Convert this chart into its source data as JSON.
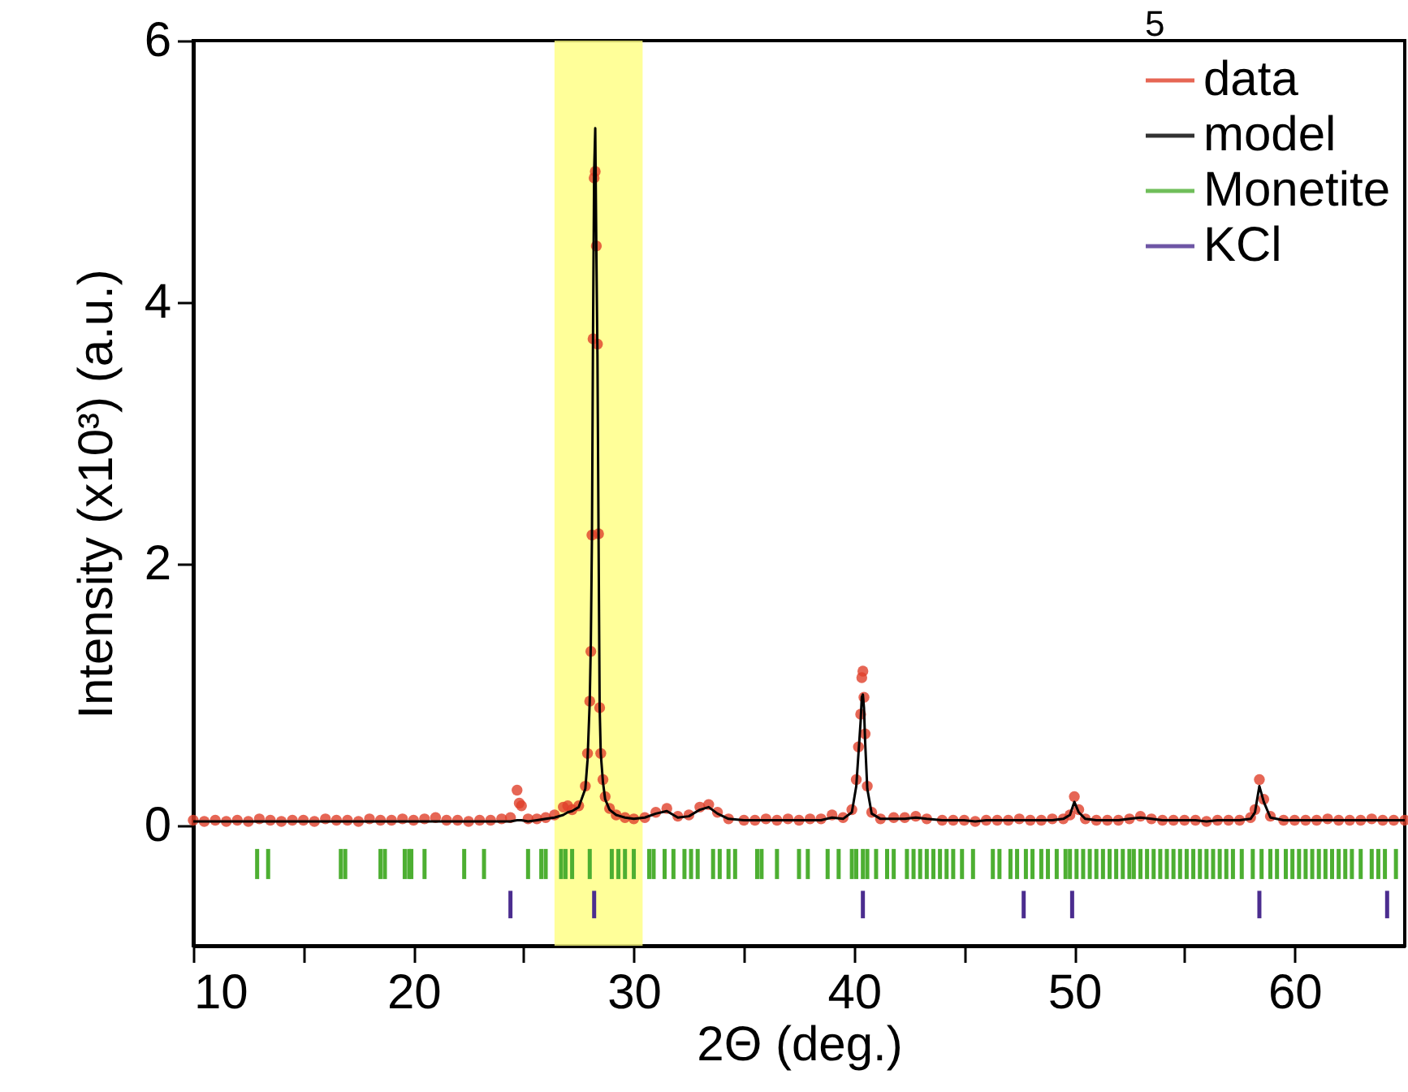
{
  "chart_data": {
    "type": "scatter",
    "xlabel": "2Θ (deg.)",
    "ylabel": "Intensity (x10³) (a.u.)",
    "annotations": [
      "5"
    ],
    "xlim": [
      10,
      65
    ],
    "xticks": [
      10,
      {
        "value": 15,
        "label": null
      },
      20,
      {
        "value": 25,
        "label": null
      },
      30,
      {
        "value": 35,
        "label": null
      },
      40,
      {
        "value": 45,
        "label": null
      },
      50,
      {
        "value": 55,
        "label": null
      },
      60
    ],
    "ylim": [
      -0.92,
      6
    ],
    "yticks": [
      0,
      2,
      4,
      6
    ],
    "legend": "top right",
    "grid": false,
    "bands": [
      {
        "axis": "x",
        "from": 26.4,
        "to": 30.4,
        "color": "#ffff80"
      }
    ],
    "series": [
      {
        "name": "data",
        "marker": "circle",
        "color": "#e0402a",
        "x": [
          10,
          10.5,
          11,
          11.5,
          12,
          12.5,
          13,
          13.5,
          14,
          14.5,
          15,
          15.5,
          16,
          16.5,
          17,
          17.5,
          18,
          18.5,
          19,
          19.5,
          20,
          20.5,
          21,
          21.5,
          22,
          22.5,
          23,
          23.5,
          24,
          24.4,
          24.7,
          24.8,
          24.9,
          25.2,
          25.6,
          26,
          26.4,
          26.8,
          27,
          27.2,
          27.5,
          27.8,
          27.9,
          28,
          28.05,
          28.1,
          28.15,
          28.2,
          28.25,
          28.3,
          28.35,
          28.4,
          28.45,
          28.5,
          28.6,
          28.7,
          28.9,
          29.2,
          29.6,
          30,
          30.5,
          31,
          31.5,
          32,
          32.5,
          33,
          33.4,
          33.8,
          34.3,
          35,
          35.5,
          36,
          36.5,
          37,
          37.5,
          38,
          38.5,
          39,
          39.5,
          39.9,
          40.1,
          40.2,
          40.3,
          40.35,
          40.4,
          40.45,
          40.5,
          40.6,
          40.8,
          41.2,
          41.8,
          42.3,
          42.8,
          43.3,
          44,
          44.5,
          45,
          45.5,
          46,
          46.5,
          47,
          47.5,
          48,
          48.5,
          49,
          49.5,
          49.8,
          50,
          50.2,
          50.5,
          51,
          51.5,
          52,
          52.5,
          53,
          53.5,
          54,
          54.5,
          55,
          55.5,
          56,
          56.5,
          57,
          57.5,
          58,
          58.2,
          58.4,
          58.6,
          58.9,
          59.5,
          60,
          60.5,
          61,
          61.5,
          62,
          62.5,
          63,
          63.5,
          64,
          64.5,
          65
        ],
        "values": [
          0.04,
          0.03,
          0.04,
          0.03,
          0.04,
          0.03,
          0.05,
          0.04,
          0.03,
          0.04,
          0.04,
          0.03,
          0.05,
          0.04,
          0.04,
          0.03,
          0.05,
          0.04,
          0.04,
          0.05,
          0.04,
          0.05,
          0.06,
          0.04,
          0.04,
          0.03,
          0.04,
          0.04,
          0.05,
          0.06,
          0.27,
          0.17,
          0.15,
          0.05,
          0.05,
          0.06,
          0.08,
          0.14,
          0.15,
          0.12,
          0.15,
          0.3,
          0.55,
          0.95,
          1.33,
          2.22,
          3.72,
          4.95,
          5.0,
          4.43,
          3.68,
          2.23,
          0.9,
          0.55,
          0.35,
          0.22,
          0.13,
          0.08,
          0.06,
          0.05,
          0.06,
          0.1,
          0.13,
          0.07,
          0.08,
          0.14,
          0.16,
          0.1,
          0.05,
          0.04,
          0.04,
          0.05,
          0.04,
          0.05,
          0.04,
          0.05,
          0.05,
          0.08,
          0.06,
          0.12,
          0.35,
          0.6,
          0.85,
          1.13,
          1.18,
          0.98,
          0.7,
          0.3,
          0.1,
          0.05,
          0.06,
          0.06,
          0.07,
          0.05,
          0.04,
          0.04,
          0.04,
          0.03,
          0.04,
          0.04,
          0.04,
          0.05,
          0.04,
          0.04,
          0.05,
          0.05,
          0.08,
          0.22,
          0.12,
          0.05,
          0.04,
          0.04,
          0.04,
          0.05,
          0.07,
          0.05,
          0.04,
          0.04,
          0.04,
          0.04,
          0.03,
          0.04,
          0.04,
          0.04,
          0.06,
          0.12,
          0.35,
          0.2,
          0.07,
          0.04,
          0.04,
          0.04,
          0.04,
          0.05,
          0.04,
          0.04,
          0.04,
          0.05,
          0.04,
          0.04,
          0.04
        ]
      },
      {
        "name": "model",
        "type": "line",
        "color": "#000000",
        "x": [
          10,
          10.5,
          11,
          11.5,
          12,
          12.5,
          13,
          13.5,
          14,
          14.5,
          15,
          15.5,
          16,
          16.5,
          17,
          17.5,
          18,
          18.5,
          19,
          19.5,
          20,
          20.5,
          21,
          21.5,
          22,
          22.5,
          23,
          23.5,
          24,
          24.4,
          24.7,
          24.8,
          24.9,
          25.2,
          25.6,
          26,
          26.4,
          26.8,
          27,
          27.2,
          27.5,
          27.8,
          27.9,
          28,
          28.05,
          28.1,
          28.15,
          28.2,
          28.25,
          28.3,
          28.35,
          28.4,
          28.45,
          28.5,
          28.6,
          28.7,
          28.9,
          29.2,
          29.6,
          30,
          30.5,
          31,
          31.5,
          32,
          32.5,
          33,
          33.4,
          33.8,
          34.3,
          35,
          35.5,
          36,
          36.5,
          37,
          37.5,
          38,
          38.5,
          39,
          39.5,
          39.9,
          40.1,
          40.2,
          40.3,
          40.35,
          40.4,
          40.45,
          40.5,
          40.6,
          40.8,
          41.2,
          41.8,
          42.3,
          42.8,
          43.3,
          44,
          44.5,
          45,
          45.5,
          46,
          46.5,
          47,
          47.5,
          48,
          48.5,
          49,
          49.5,
          49.8,
          50,
          50.2,
          50.5,
          51,
          51.5,
          52,
          52.5,
          53,
          53.5,
          54,
          54.5,
          55,
          55.5,
          56,
          56.5,
          57,
          57.5,
          58,
          58.2,
          58.4,
          58.6,
          58.9,
          59.5,
          60,
          60.5,
          61,
          61.5,
          62,
          62.5,
          63,
          63.5,
          64,
          64.5,
          65
        ],
        "values": [
          0.03,
          0.03,
          0.03,
          0.03,
          0.03,
          0.03,
          0.03,
          0.03,
          0.03,
          0.03,
          0.03,
          0.03,
          0.03,
          0.03,
          0.03,
          0.03,
          0.03,
          0.03,
          0.03,
          0.03,
          0.03,
          0.03,
          0.03,
          0.03,
          0.03,
          0.03,
          0.03,
          0.03,
          0.03,
          0.03,
          0.04,
          0.04,
          0.04,
          0.03,
          0.04,
          0.05,
          0.06,
          0.08,
          0.1,
          0.11,
          0.14,
          0.28,
          0.5,
          0.95,
          1.4,
          2.2,
          3.8,
          5.0,
          5.33,
          4.4,
          3.6,
          2.2,
          0.9,
          0.55,
          0.33,
          0.2,
          0.12,
          0.08,
          0.06,
          0.05,
          0.06,
          0.09,
          0.11,
          0.06,
          0.07,
          0.12,
          0.14,
          0.09,
          0.05,
          0.04,
          0.04,
          0.04,
          0.04,
          0.04,
          0.04,
          0.04,
          0.04,
          0.06,
          0.05,
          0.1,
          0.3,
          0.55,
          0.8,
          0.98,
          1.0,
          0.9,
          0.65,
          0.28,
          0.09,
          0.05,
          0.05,
          0.05,
          0.06,
          0.05,
          0.04,
          0.04,
          0.04,
          0.03,
          0.04,
          0.04,
          0.04,
          0.04,
          0.04,
          0.04,
          0.04,
          0.05,
          0.08,
          0.18,
          0.1,
          0.05,
          0.04,
          0.04,
          0.04,
          0.05,
          0.06,
          0.05,
          0.04,
          0.04,
          0.04,
          0.04,
          0.03,
          0.04,
          0.04,
          0.04,
          0.05,
          0.1,
          0.3,
          0.18,
          0.06,
          0.04,
          0.04,
          0.04,
          0.04,
          0.04,
          0.04,
          0.04,
          0.04,
          0.04,
          0.04,
          0.04,
          0.04
        ]
      },
      {
        "name": "Monetite",
        "type": "bar",
        "color": "#4daf32",
        "base": [
          -0.41,
          -0.41,
          -0.41,
          -0.41,
          -0.41,
          -0.41,
          -0.41,
          -0.41,
          -0.41,
          -0.41,
          -0.41,
          -0.41,
          -0.41,
          -0.41,
          -0.41,
          -0.41,
          -0.41,
          -0.41,
          -0.41,
          -0.41,
          -0.41,
          -0.41,
          -0.41,
          -0.41,
          -0.41,
          -0.41,
          -0.41,
          -0.41,
          -0.41,
          -0.41,
          -0.41,
          -0.41,
          -0.41,
          -0.41,
          -0.41,
          -0.41,
          -0.41,
          -0.41,
          -0.41,
          -0.41,
          -0.41,
          -0.41,
          -0.41,
          -0.41,
          -0.41,
          -0.41,
          -0.41,
          -0.41,
          -0.41,
          -0.41,
          -0.41,
          -0.41,
          -0.41,
          -0.41,
          -0.41,
          -0.41,
          -0.41,
          -0.41,
          -0.41,
          -0.41,
          -0.41,
          -0.41,
          -0.41,
          -0.41,
          -0.41,
          -0.41,
          -0.41,
          -0.41,
          -0.41,
          -0.41,
          -0.41,
          -0.41,
          -0.41,
          -0.41,
          -0.41,
          -0.41,
          -0.41,
          -0.41,
          -0.41,
          -0.41,
          -0.41,
          -0.41,
          -0.41,
          -0.41,
          -0.41,
          -0.41,
          -0.41,
          -0.41,
          -0.41,
          -0.41,
          -0.41,
          -0.41,
          -0.41,
          -0.41,
          -0.41,
          -0.41,
          -0.41,
          -0.41,
          -0.41,
          -0.41,
          -0.41,
          -0.41,
          -0.41,
          -0.41,
          -0.41,
          -0.41,
          -0.41,
          -0.41,
          -0.41,
          -0.41,
          -0.41,
          -0.41,
          -0.41,
          -0.41,
          -0.41
        ],
        "x": [
          12.9,
          13.4,
          16.7,
          16.9,
          18.5,
          18.7,
          19.6,
          19.8,
          19.9,
          20.5,
          22.3,
          23.2,
          25.2,
          25.8,
          26.0,
          26.7,
          26.9,
          27.2,
          28.0,
          29.0,
          29.3,
          29.6,
          30.0,
          30.7,
          30.9,
          31.4,
          31.8,
          32.3,
          32.6,
          32.9,
          33.6,
          33.9,
          34.3,
          34.6,
          35.6,
          35.8,
          36.5,
          37.5,
          37.9,
          38.8,
          39.3,
          39.9,
          40.1,
          40.4,
          40.6,
          41.0,
          41.5,
          41.8,
          42.4,
          42.7,
          43.0,
          43.3,
          43.6,
          43.9,
          44.2,
          44.5,
          44.9,
          45.4,
          46.3,
          46.6,
          47.1,
          47.4,
          47.8,
          48.1,
          48.5,
          48.8,
          49.2,
          49.6,
          49.8,
          50.1,
          50.4,
          50.7,
          51.0,
          51.3,
          51.6,
          51.9,
          52.2,
          52.5,
          52.7,
          53.0,
          53.3,
          53.6,
          53.9,
          54.2,
          54.5,
          54.8,
          55.1,
          55.4,
          55.7,
          56.0,
          56.3,
          56.6,
          56.9,
          57.2,
          57.6,
          58.1,
          58.5,
          58.9,
          59.2,
          59.6,
          59.9,
          60.2,
          60.5,
          60.8,
          61.1,
          61.4,
          61.7,
          62.0,
          62.3,
          62.6,
          63.0,
          63.5,
          63.8,
          64.1,
          64.6
        ],
        "values": [
          0.23,
          0.23,
          0.23,
          0.23,
          0.23,
          0.23,
          0.23,
          0.23,
          0.23,
          0.23,
          0.23,
          0.23,
          0.23,
          0.23,
          0.23,
          0.23,
          0.23,
          0.23,
          0.23,
          0.23,
          0.23,
          0.23,
          0.23,
          0.23,
          0.23,
          0.23,
          0.23,
          0.23,
          0.23,
          0.23,
          0.23,
          0.23,
          0.23,
          0.23,
          0.23,
          0.23,
          0.23,
          0.23,
          0.23,
          0.23,
          0.23,
          0.23,
          0.23,
          0.23,
          0.23,
          0.23,
          0.23,
          0.23,
          0.23,
          0.23,
          0.23,
          0.23,
          0.23,
          0.23,
          0.23,
          0.23,
          0.23,
          0.23,
          0.23,
          0.23,
          0.23,
          0.23,
          0.23,
          0.23,
          0.23,
          0.23,
          0.23,
          0.23,
          0.23,
          0.23,
          0.23,
          0.23,
          0.23,
          0.23,
          0.23,
          0.23,
          0.23,
          0.23,
          0.23,
          0.23,
          0.23,
          0.23,
          0.23,
          0.23,
          0.23,
          0.23,
          0.23,
          0.23,
          0.23,
          0.23,
          0.23,
          0.23,
          0.23,
          0.23,
          0.23,
          0.23,
          0.23,
          0.23,
          0.23,
          0.23,
          0.23,
          0.23,
          0.23,
          0.23,
          0.23,
          0.23,
          0.23,
          0.23,
          0.23,
          0.23,
          0.23,
          0.23,
          0.23,
          0.23,
          0.23
        ]
      },
      {
        "name": "KCl",
        "type": "bar",
        "color": "#4b2d8f",
        "x": [
          24.4,
          28.2,
          40.4,
          47.7,
          49.9,
          58.4,
          64.2
        ],
        "base": [
          -0.71,
          -0.71,
          -0.71,
          -0.71,
          -0.71,
          -0.71,
          -0.71
        ],
        "values": [
          0.21,
          0.21,
          0.21,
          0.21,
          0.21,
          0.21,
          0.21
        ]
      }
    ]
  }
}
